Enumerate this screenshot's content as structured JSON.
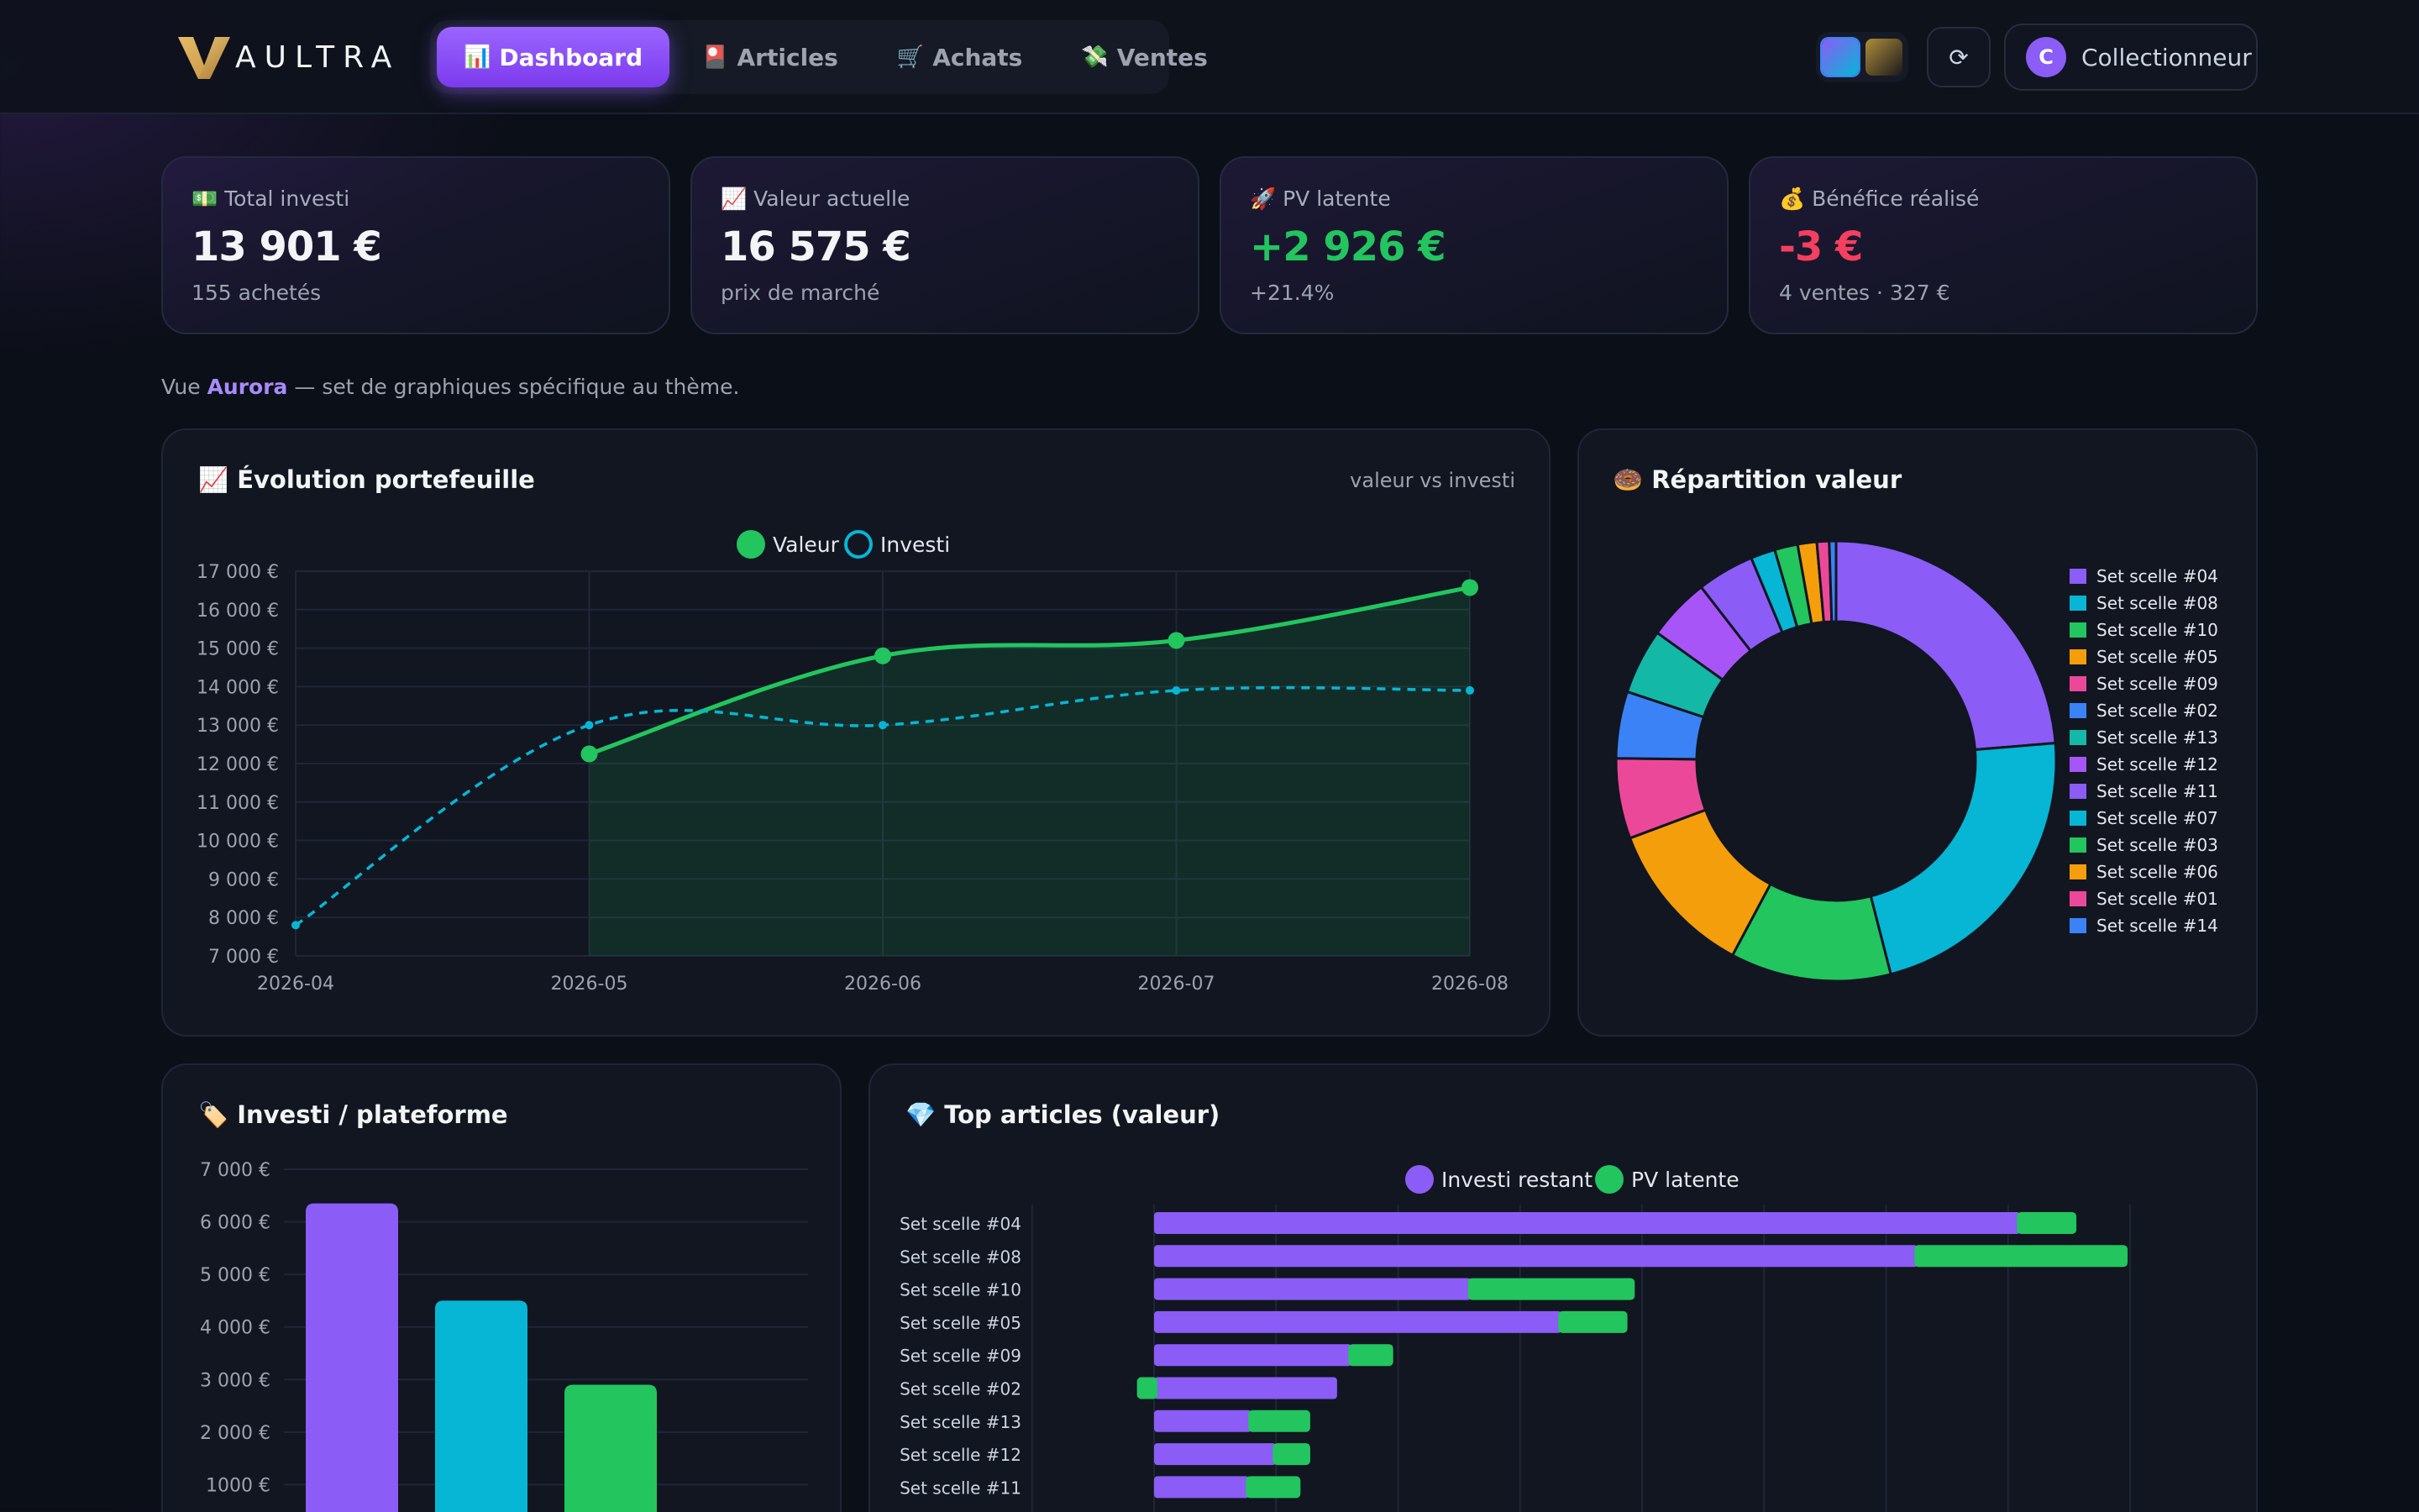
{
  "app": {
    "brand": "AULTRA",
    "nav": [
      {
        "icon": "📊",
        "label": "Dashboard",
        "active": true
      },
      {
        "icon": "🎴",
        "label": "Articles",
        "active": false
      },
      {
        "icon": "🛒",
        "label": "Achats",
        "active": false
      },
      {
        "icon": "💸",
        "label": "Ventes",
        "active": false
      }
    ],
    "themes": [
      "aurora",
      "gold"
    ],
    "refresh_icon": "⟳",
    "user": {
      "initial": "C",
      "name": "Collectionneur"
    }
  },
  "stats": [
    {
      "icon": "💵",
      "label": "Total investi",
      "value": "13 901 €",
      "sub": "155 achetés",
      "tone": "neutral"
    },
    {
      "icon": "📈",
      "label": "Valeur actuelle",
      "value": "16 575 €",
      "sub": "prix de marché",
      "tone": "neutral"
    },
    {
      "icon": "🚀",
      "label": "PV latente",
      "value": "+2 926 €",
      "sub": "+21.4%",
      "tone": "positive"
    },
    {
      "icon": "💰",
      "label": "Bénéfice réalisé",
      "value": "-3 €",
      "sub": "4 ventes · 327 €",
      "tone": "negative"
    }
  ],
  "theme_note": {
    "prefix": "Vue ",
    "theme": "Aurora",
    "suffix": " — set de graphiques spécifique au thème."
  },
  "colors": {
    "accent": "#8b5cf6",
    "green": "#22c55e",
    "cyan": "#06b6d4",
    "red": "#f43f5e",
    "palette": [
      "#8b5cf6",
      "#06b6d4",
      "#22c55e",
      "#f59e0b",
      "#ec4899",
      "#3b82f6",
      "#14b8a6"
    ]
  },
  "chart_data": [
    {
      "id": "evolution",
      "type": "line",
      "title": "📈 Évolution portefeuille",
      "hint": "valeur vs investi",
      "x": [
        "2026-04",
        "2026-05",
        "2026-06",
        "2026-07",
        "2026-08"
      ],
      "series": [
        {
          "name": "Valeur",
          "values": [
            null,
            12250,
            14800,
            15200,
            16575
          ],
          "color": "#22c55e",
          "style": "solid-filled"
        },
        {
          "name": "Investi",
          "values": [
            7800,
            13000,
            13000,
            13900,
            13901
          ],
          "color": "#06b6d4",
          "style": "dashed"
        }
      ],
      "yticks": [
        "7 000 €",
        "8 000 €",
        "9 000 €",
        "10 000 €",
        "11 000 €",
        "12 000 €",
        "13 000 €",
        "14 000 €",
        "15 000 €",
        "16 000 €",
        "17 000 €"
      ],
      "ylim": [
        7000,
        17000
      ],
      "legend": "top-center",
      "grid": true
    },
    {
      "id": "repartition",
      "type": "pie",
      "title": "🍩 Répartition valeur",
      "donut": true,
      "legend": "right",
      "labels": [
        "Set scelle #04",
        "Set scelle #08",
        "Set scelle #10",
        "Set scelle #05",
        "Set scelle #09",
        "Set scelle #02",
        "Set scelle #13",
        "Set scelle #12",
        "Set scelle #11",
        "Set scelle #07",
        "Set scelle #03",
        "Set scelle #06",
        "Set scelle #01",
        "Set scelle #14"
      ],
      "values": [
        23.7,
        22.3,
        11.8,
        11.5,
        5.9,
        4.9,
        4.8,
        4.6,
        4.2,
        1.8,
        1.7,
        1.4,
        0.9,
        0.5
      ],
      "colors": [
        "#8b5cf6",
        "#06b6d4",
        "#22c55e",
        "#f59e0b",
        "#ec4899",
        "#3b82f6",
        "#14b8a6",
        "#a855f7",
        "#8b5cf6",
        "#06b6d4",
        "#22c55e",
        "#f59e0b",
        "#ec4899",
        "#3b82f6"
      ]
    },
    {
      "id": "plateforme",
      "type": "bar",
      "title": "🏷️ Investi / plateforme",
      "categories": [
        "",
        "",
        ""
      ],
      "values": [
        6350,
        4500,
        2900
      ],
      "colors": [
        "#8b5cf6",
        "#06b6d4",
        "#22c55e"
      ],
      "yticks": [
        "1000 €",
        "2 000 €",
        "3 000 €",
        "4 000 €",
        "5 000 €",
        "6 000 €",
        "7 000 €"
      ],
      "ylim": [
        0,
        7000
      ],
      "grid": true
    },
    {
      "id": "top",
      "type": "bar",
      "orientation": "horizontal",
      "stacked": true,
      "title": "💎 Top articles (valeur)",
      "categories": [
        "Set scelle #04",
        "Set scelle #08",
        "Set scelle #10",
        "Set scelle #05",
        "Set scelle #09",
        "Set scelle #02",
        "Set scelle #13",
        "Set scelle #12",
        "Set scelle #11"
      ],
      "series": [
        {
          "name": "Investi restant",
          "values": [
            3550,
            3130,
            1300,
            1670,
            810,
            750,
            400,
            500,
            390
          ],
          "color": "#8b5cf6"
        },
        {
          "name": "PV latente",
          "values": [
            230,
            860,
            670,
            270,
            170,
            -70,
            240,
            140,
            210
          ],
          "color": "#22c55e"
        }
      ],
      "legend": "top-center",
      "grid": true
    }
  ]
}
